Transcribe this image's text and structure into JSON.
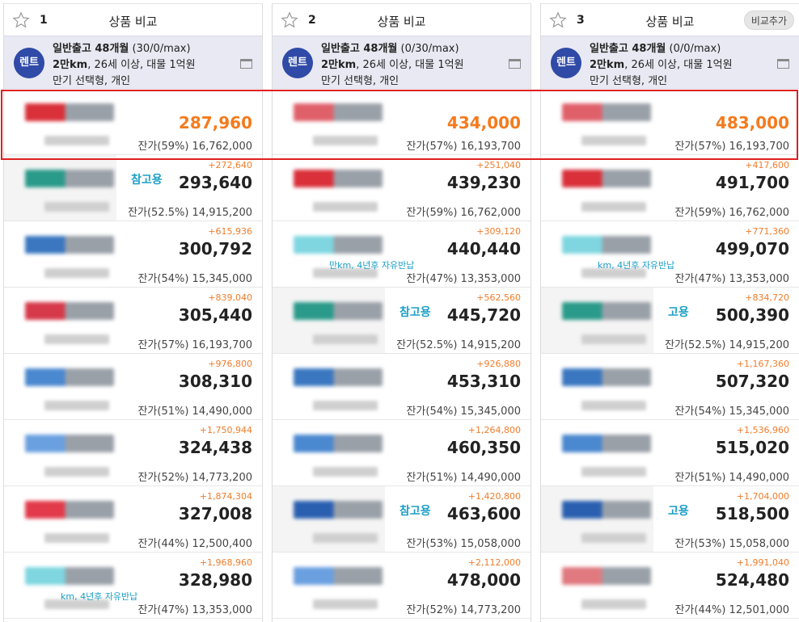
{
  "columns": [
    {
      "num": "1",
      "title": "상품 비교",
      "add_label": "",
      "badge": "렌트",
      "cond_line1_bold": "일반출고 48개월",
      "cond_line1_rest": " (30/0/max)",
      "cond_line2_bold": "2만km",
      "cond_line2_rest": ", 26세 이상, 대물 1억원",
      "cond_line3": "만기 선택형, 개인",
      "rows": [
        {
          "diff": "",
          "price": "287,960",
          "residual": "잔가(59%) 16,762,000",
          "best": true,
          "logo": "#d9303a",
          "ref": "",
          "note": ""
        },
        {
          "diff": "+272,640",
          "price": "293,640",
          "residual": "잔가(52.5%) 14,915,200",
          "best": false,
          "logo": "#2a9a8a",
          "ref": "참고용",
          "note": ""
        },
        {
          "diff": "+615,936",
          "price": "300,792",
          "residual": "잔가(54%) 15,345,000",
          "best": false,
          "logo": "#3a77c0",
          "ref": "",
          "note": ""
        },
        {
          "diff": "+839,040",
          "price": "305,440",
          "residual": "잔가(57%) 16,193,700",
          "best": false,
          "logo": "#d63a4a",
          "ref": "",
          "note": ""
        },
        {
          "diff": "+976,800",
          "price": "308,310",
          "residual": "잔가(51%) 14,490,000",
          "best": false,
          "logo": "#4a88d0",
          "ref": "",
          "note": ""
        },
        {
          "diff": "+1,750,944",
          "price": "324,438",
          "residual": "잔가(52%) 14,773,200",
          "best": false,
          "logo": "#6aa0e0",
          "ref": "",
          "note": ""
        },
        {
          "diff": "+1,874,304",
          "price": "327,008",
          "residual": "잔가(44%) 12,500,400",
          "best": false,
          "logo": "#e23a4a",
          "ref": "",
          "note": ""
        },
        {
          "diff": "+1,968,960",
          "price": "328,980",
          "residual": "잔가(47%) 13,353,000",
          "best": false,
          "logo": "#7fd6e0",
          "ref": "",
          "note": "km, 4년후 자유반납"
        }
      ]
    },
    {
      "num": "2",
      "title": "상품 비교",
      "add_label": "",
      "badge": "렌트",
      "cond_line1_bold": "일반출고 48개월",
      "cond_line1_rest": " (0/30/max)",
      "cond_line2_bold": "2만km",
      "cond_line2_rest": ", 26세 이상, 대물 1억원",
      "cond_line3": "만기 선택형, 개인",
      "rows": [
        {
          "diff": "",
          "price": "434,000",
          "residual": "잔가(57%) 16,193,700",
          "best": true,
          "logo": "#e0606a",
          "ref": "",
          "note": ""
        },
        {
          "diff": "+251,040",
          "price": "439,230",
          "residual": "잔가(59%) 16,762,000",
          "best": false,
          "logo": "#d9303a",
          "ref": "",
          "note": ""
        },
        {
          "diff": "+309,120",
          "price": "440,440",
          "residual": "잔가(47%) 13,353,000",
          "best": false,
          "logo": "#7fd6e0",
          "ref": "",
          "note": "만km, 4년후 자유반납"
        },
        {
          "diff": "+562,560",
          "price": "445,720",
          "residual": "잔가(52.5%) 14,915,200",
          "best": false,
          "logo": "#2a9a8a",
          "ref": "참고용",
          "note": ""
        },
        {
          "diff": "+926,880",
          "price": "453,310",
          "residual": "잔가(54%) 15,345,000",
          "best": false,
          "logo": "#3a77c0",
          "ref": "",
          "note": ""
        },
        {
          "diff": "+1,264,800",
          "price": "460,350",
          "residual": "잔가(51%) 14,490,000",
          "best": false,
          "logo": "#4a88d0",
          "ref": "",
          "note": ""
        },
        {
          "diff": "+1,420,800",
          "price": "463,600",
          "residual": "잔가(53%) 15,058,000",
          "best": false,
          "logo": "#2a5fb0",
          "ref": "참고용",
          "note": ""
        },
        {
          "diff": "+2,112,000",
          "price": "478,000",
          "residual": "잔가(52%) 14,773,200",
          "best": false,
          "logo": "#6aa0e0",
          "ref": "",
          "note": ""
        }
      ]
    },
    {
      "num": "3",
      "title": "상품 비교",
      "add_label": "비교추가",
      "badge": "렌트",
      "cond_line1_bold": "일반출고 48개월",
      "cond_line1_rest": " (0/0/max)",
      "cond_line2_bold": "2만km",
      "cond_line2_rest": ", 26세 이상, 대물 1억원",
      "cond_line3": "만기 선택형, 개인",
      "rows": [
        {
          "diff": "",
          "price": "483,000",
          "residual": "잔가(57%) 16,193,700",
          "best": true,
          "logo": "#e0606a",
          "ref": "",
          "note": ""
        },
        {
          "diff": "+417,600",
          "price": "491,700",
          "residual": "잔가(59%) 16,762,000",
          "best": false,
          "logo": "#d9303a",
          "ref": "",
          "note": ""
        },
        {
          "diff": "+771,360",
          "price": "499,070",
          "residual": "잔가(47%) 13,353,000",
          "best": false,
          "logo": "#7fd6e0",
          "ref": "",
          "note": "km, 4년후 자유반납"
        },
        {
          "diff": "+834,720",
          "price": "500,390",
          "residual": "잔가(52.5%) 14,915,200",
          "best": false,
          "logo": "#2a9a8a",
          "ref": "고용",
          "note": ""
        },
        {
          "diff": "+1,167,360",
          "price": "507,320",
          "residual": "잔가(54%) 15,345,000",
          "best": false,
          "logo": "#3a77c0",
          "ref": "",
          "note": ""
        },
        {
          "diff": "+1,536,960",
          "price": "515,020",
          "residual": "잔가(51%) 14,490,000",
          "best": false,
          "logo": "#4a88d0",
          "ref": "",
          "note": ""
        },
        {
          "diff": "+1,704,000",
          "price": "518,500",
          "residual": "잔가(53%) 15,058,000",
          "best": false,
          "logo": "#2a5fb0",
          "ref": "고용",
          "note": ""
        },
        {
          "diff": "+1,991,040",
          "price": "524,480",
          "residual": "잔가(44%) 12,501,000",
          "best": false,
          "logo": "#e07a80",
          "ref": "",
          "note": ""
        }
      ]
    }
  ]
}
